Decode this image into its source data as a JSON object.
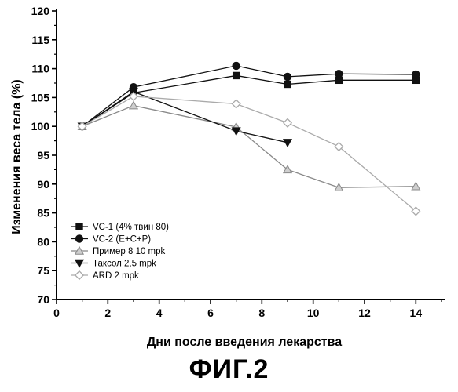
{
  "chart_data": {
    "type": "line",
    "xlabel": "Дни после введения лекарства",
    "ylabel": "Изменения веса тела (%)",
    "xlim": [
      0,
      15
    ],
    "ylim": [
      70,
      120
    ],
    "x_ticks": [
      "0",
      "2",
      "4",
      "6",
      "8",
      "10",
      "12",
      "14"
    ],
    "y_ticks": [
      "70",
      "75",
      "80",
      "85",
      "90",
      "95",
      "100",
      "105",
      "110",
      "115",
      "120"
    ],
    "grid": false,
    "legend_position": "bottom-left",
    "series": [
      {
        "name": "VC-1 (4% твин 80)",
        "marker": "square",
        "color": "#111111",
        "points": [
          [
            1,
            100
          ],
          [
            3,
            105.8
          ],
          [
            7,
            108.8
          ],
          [
            9,
            107.3
          ],
          [
            11,
            108.0
          ],
          [
            14,
            108.0
          ]
        ]
      },
      {
        "name": "VC-2 (E+C+P)",
        "marker": "circle",
        "color": "#111111",
        "points": [
          [
            1,
            100
          ],
          [
            3,
            106.8
          ],
          [
            7,
            110.5
          ],
          [
            9,
            108.6
          ],
          [
            11,
            109.1
          ],
          [
            14,
            109.0
          ]
        ]
      },
      {
        "name": "Пример 8 10 mpk",
        "marker": "triangle-up",
        "color": "#888888",
        "points": [
          [
            1,
            100
          ],
          [
            3,
            103.6
          ],
          [
            7,
            99.9
          ],
          [
            9,
            92.5
          ],
          [
            11,
            89.4
          ],
          [
            14,
            89.6
          ]
        ]
      },
      {
        "name": "Таксол 2,5 mpk",
        "marker": "triangle-down",
        "color": "#111111",
        "points": [
          [
            1,
            100
          ],
          [
            3,
            106.0
          ],
          [
            7,
            99.2
          ],
          [
            9,
            97.2
          ]
        ]
      },
      {
        "name": "ARD 2 mpk",
        "marker": "diamond",
        "color": "#aaaaaa",
        "points": [
          [
            1,
            100
          ],
          [
            3,
            105.2
          ],
          [
            7,
            103.9
          ],
          [
            9,
            100.6
          ],
          [
            11,
            96.5
          ],
          [
            14,
            85.3
          ]
        ]
      }
    ]
  },
  "figure_caption": "ФИГ.2"
}
